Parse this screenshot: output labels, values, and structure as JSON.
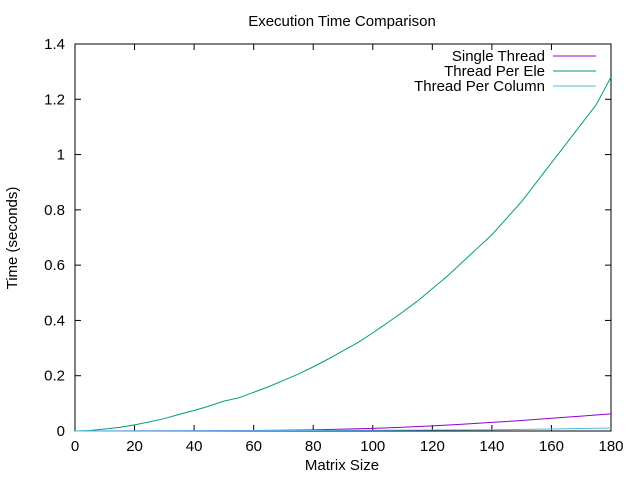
{
  "chart_data": {
    "type": "line",
    "title": "Execution Time Comparison",
    "xlabel": "Matrix Size",
    "ylabel": "Time (seconds)",
    "xlim": [
      0,
      180
    ],
    "ylim": [
      0,
      1.4
    ],
    "xticks": [
      0,
      20,
      40,
      60,
      80,
      100,
      120,
      140,
      160,
      180
    ],
    "xtick_labels": [
      "0",
      "20",
      "40",
      "60",
      "80",
      "100",
      "120",
      "140",
      "160",
      "180"
    ],
    "yticks": [
      0,
      0.2,
      0.4,
      0.6,
      0.8,
      1.0,
      1.2,
      1.4
    ],
    "ytick_labels": [
      "0",
      "0.2",
      "0.4",
      "0.6",
      "0.8",
      "1",
      "1.2",
      "1.4"
    ],
    "grid": false,
    "legend_position": "top-right",
    "series": [
      {
        "name": "Single Thread",
        "color": "#9400d3",
        "x": [
          0,
          20,
          40,
          60,
          80,
          100,
          110,
          120,
          130,
          140,
          150,
          160,
          170,
          180
        ],
        "y": [
          0,
          0.0005,
          0.001,
          0.002,
          0.004,
          0.0095,
          0.0135,
          0.0185,
          0.0245,
          0.031,
          0.038,
          0.046,
          0.054,
          0.062
        ]
      },
      {
        "name": "Thread Per Ele",
        "color": "#009e73",
        "x": [
          0,
          5,
          10,
          15,
          20,
          25,
          30,
          35,
          40,
          45,
          50,
          55,
          60,
          65,
          70,
          75,
          80,
          85,
          90,
          95,
          100,
          105,
          110,
          115,
          120,
          125,
          130,
          135,
          140,
          145,
          150,
          155,
          160,
          165,
          170,
          175,
          180
        ],
        "y": [
          0,
          0.002,
          0.007,
          0.013,
          0.022,
          0.033,
          0.045,
          0.06,
          0.074,
          0.09,
          0.108,
          0.12,
          0.14,
          0.16,
          0.183,
          0.206,
          0.232,
          0.26,
          0.29,
          0.32,
          0.355,
          0.392,
          0.43,
          0.47,
          0.515,
          0.56,
          0.61,
          0.66,
          0.71,
          0.77,
          0.83,
          0.9,
          0.97,
          1.04,
          1.11,
          1.18,
          1.28
        ]
      },
      {
        "name": "Thread Per Column",
        "color": "#56b4e9",
        "x": [
          0,
          20,
          40,
          60,
          80,
          100,
          120,
          140,
          160,
          180
        ],
        "y": [
          0,
          0.0003,
          0.0007,
          0.0012,
          0.0018,
          0.0025,
          0.0034,
          0.0045,
          0.007,
          0.011
        ]
      }
    ]
  }
}
